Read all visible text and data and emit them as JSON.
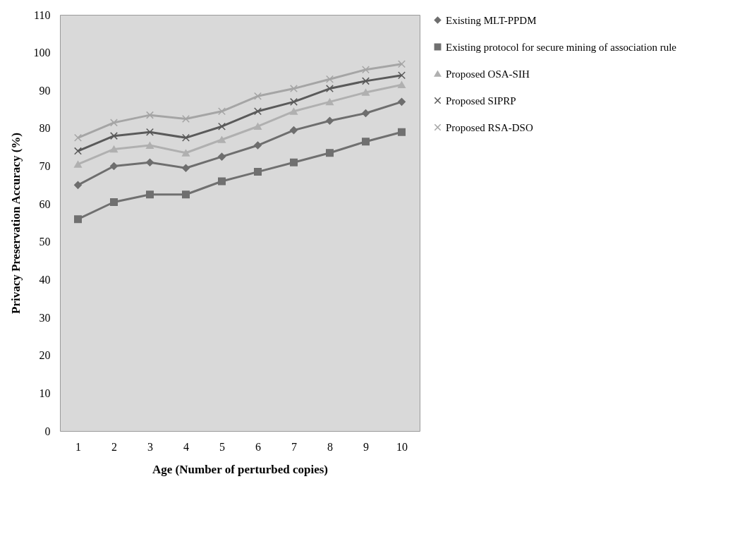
{
  "chart_data": {
    "type": "line",
    "xlabel": "Age (Number of perturbed copies)",
    "ylabel": "Privacy Preservation Accuracy (%)",
    "categories": [
      "1",
      "2",
      "3",
      "4",
      "5",
      "6",
      "7",
      "8",
      "9",
      "10"
    ],
    "series": [
      {
        "name": "Existing MLT-PPDM",
        "color": "#6e6e6e",
        "marker": "diamond",
        "values": [
          65,
          70,
          71,
          69.5,
          72.5,
          75.5,
          79.5,
          82,
          84,
          87
        ]
      },
      {
        "name": "Existing  protocol for secure mining of association rule",
        "color": "#707070",
        "marker": "square",
        "values": [
          56,
          60.5,
          62.5,
          62.5,
          66,
          68.5,
          71,
          73.5,
          76.5,
          79
        ]
      },
      {
        "name": "Proposed OSA-SIH",
        "color": "#b0b0b0",
        "marker": "triangle",
        "values": [
          70.5,
          74.5,
          75.5,
          73.5,
          77,
          80.5,
          84.5,
          87,
          89.5,
          91.5
        ]
      },
      {
        "name": "Proposed SIPRP",
        "color": "#5a5a5a",
        "marker": "cross",
        "values": [
          74,
          78,
          79,
          77.5,
          80.5,
          84.5,
          87,
          90.5,
          92.5,
          94
        ]
      },
      {
        "name": "Proposed RSA-DSO",
        "color": "#a5a5a5",
        "marker": "cross",
        "values": [
          77.5,
          81.5,
          83.5,
          82.5,
          84.5,
          88.5,
          90.5,
          93,
          95.5,
          97
        ]
      }
    ],
    "ylim": [
      0,
      110
    ],
    "yticks": [
      0,
      10,
      20,
      30,
      40,
      50,
      60,
      70,
      80,
      90,
      100,
      110
    ],
    "grid": false,
    "legend": "right",
    "line_style": "solid"
  }
}
